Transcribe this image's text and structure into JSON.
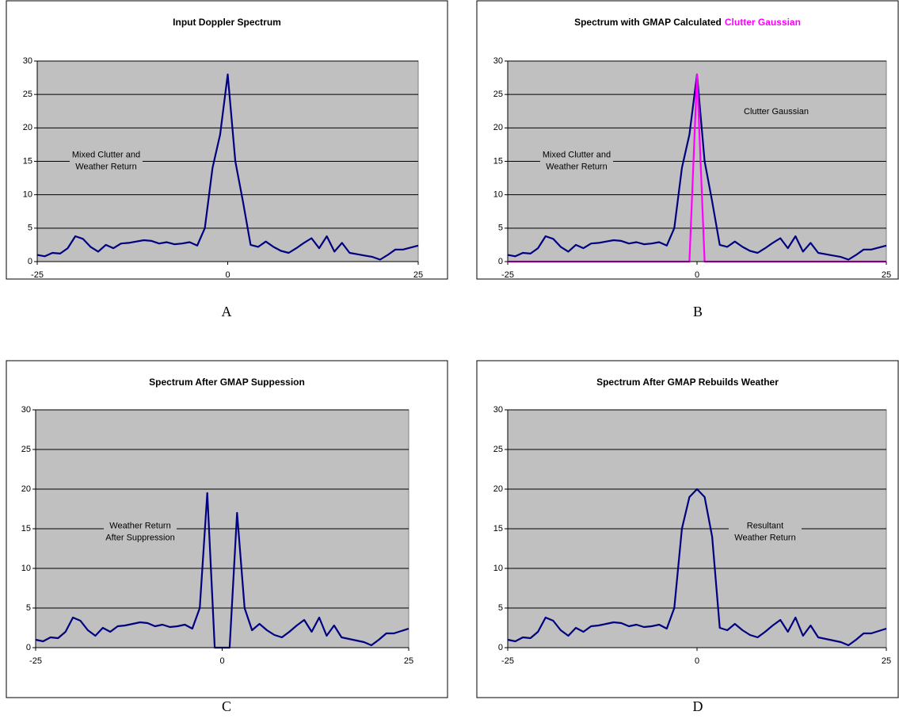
{
  "chart_data": [
    {
      "type": "line",
      "caption": "A",
      "title": [
        "Input Doppler Spectrum"
      ],
      "annotations": [
        [
          "Mixed Clutter and",
          "Weather Return"
        ]
      ],
      "x": [
        -25,
        -24,
        -23,
        -22,
        -21,
        -20,
        -19,
        -18,
        -17,
        -16,
        -15,
        -14,
        -13,
        -12,
        -11,
        -10,
        -9,
        -8,
        -7,
        -6,
        -5,
        -4,
        -3,
        -2,
        -1,
        0,
        1,
        2,
        3,
        4,
        5,
        6,
        7,
        8,
        9,
        10,
        11,
        12,
        13,
        14,
        15,
        16,
        17,
        18,
        19,
        20,
        21,
        22,
        23,
        24,
        25
      ],
      "series": [
        {
          "color": "#000080",
          "values": [
            1,
            0.8,
            1.3,
            1.2,
            2,
            3.8,
            3.4,
            2.2,
            1.5,
            2.5,
            2,
            2.7,
            2.8,
            3,
            3.2,
            3.1,
            2.7,
            2.9,
            2.6,
            2.7,
            2.9,
            2.4,
            5,
            14,
            19,
            28,
            15,
            9,
            2.5,
            2.2,
            3,
            2.2,
            1.6,
            1.3,
            2,
            2.8,
            3.5,
            2,
            3.8,
            1.5,
            2.8,
            1.3,
            1.1,
            0.9,
            0.7,
            0.3,
            1,
            1.8,
            1.8,
            2.1,
            2.4
          ]
        }
      ],
      "xlim": [
        -25,
        25
      ],
      "xticks": [
        -25,
        0,
        25
      ],
      "ylim": [
        0,
        30
      ],
      "yticks": [
        0,
        5,
        10,
        15,
        20,
        25,
        30
      ],
      "grid": true,
      "background": "#c0c0c0"
    },
    {
      "type": "line",
      "caption": "B",
      "title": [
        "Spectrum with GMAP Calculated",
        "Clutter Gaussian"
      ],
      "annotations": [
        [
          "Mixed Clutter and",
          "Weather Return"
        ],
        [
          "Clutter Gaussian"
        ]
      ],
      "x": [
        -25,
        -24,
        -23,
        -22,
        -21,
        -20,
        -19,
        -18,
        -17,
        -16,
        -15,
        -14,
        -13,
        -12,
        -11,
        -10,
        -9,
        -8,
        -7,
        -6,
        -5,
        -4,
        -3,
        -2,
        -1,
        0,
        1,
        2,
        3,
        4,
        5,
        6,
        7,
        8,
        9,
        10,
        11,
        12,
        13,
        14,
        15,
        16,
        17,
        18,
        19,
        20,
        21,
        22,
        23,
        24,
        25
      ],
      "series": [
        {
          "color": "#000080",
          "values": [
            1,
            0.8,
            1.3,
            1.2,
            2,
            3.8,
            3.4,
            2.2,
            1.5,
            2.5,
            2,
            2.7,
            2.8,
            3,
            3.2,
            3.1,
            2.7,
            2.9,
            2.6,
            2.7,
            2.9,
            2.4,
            5,
            14,
            19,
            28,
            15,
            9,
            2.5,
            2.2,
            3,
            2.2,
            1.6,
            1.3,
            2,
            2.8,
            3.5,
            2,
            3.8,
            1.5,
            2.8,
            1.3,
            1.1,
            0.9,
            0.7,
            0.3,
            1,
            1.8,
            1.8,
            2.1,
            2.4
          ]
        },
        {
          "color": "#ff00ff",
          "values": [
            0,
            0,
            0,
            0,
            0,
            0,
            0,
            0,
            0,
            0,
            0,
            0,
            0,
            0,
            0,
            0,
            0,
            0,
            0,
            0,
            0,
            0,
            0,
            0,
            0,
            28,
            0,
            0,
            0,
            0,
            0,
            0,
            0,
            0,
            0,
            0,
            0,
            0,
            0,
            0,
            0,
            0,
            0,
            0,
            0,
            0,
            0,
            0,
            0,
            0,
            0
          ]
        }
      ],
      "xlim": [
        -25,
        25
      ],
      "xticks": [
        -25,
        0,
        25
      ],
      "ylim": [
        0,
        30
      ],
      "yticks": [
        0,
        5,
        10,
        15,
        20,
        25,
        30
      ],
      "grid": true,
      "background": "#c0c0c0"
    },
    {
      "type": "line",
      "caption": "C",
      "title": [
        "Spectrum After GMAP Suppession"
      ],
      "annotations": [
        [
          "Weather Return",
          "After Suppression"
        ]
      ],
      "x": [
        -25,
        -24,
        -23,
        -22,
        -21,
        -20,
        -19,
        -18,
        -17,
        -16,
        -15,
        -14,
        -13,
        -12,
        -11,
        -10,
        -9,
        -8,
        -7,
        -6,
        -5,
        -4,
        -3,
        -2,
        -1,
        0,
        1,
        2,
        3,
        4,
        5,
        6,
        7,
        8,
        9,
        10,
        11,
        12,
        13,
        14,
        15,
        16,
        17,
        18,
        19,
        20,
        21,
        22,
        23,
        24,
        25
      ],
      "series": [
        {
          "color": "#000080",
          "values": [
            1,
            0.8,
            1.3,
            1.2,
            2,
            3.8,
            3.4,
            2.2,
            1.5,
            2.5,
            2,
            2.7,
            2.8,
            3,
            3.2,
            3.1,
            2.7,
            2.9,
            2.6,
            2.7,
            2.9,
            2.4,
            5,
            19.5,
            0,
            0,
            0,
            17,
            5,
            2.2,
            3,
            2.2,
            1.6,
            1.3,
            2,
            2.8,
            3.5,
            2,
            3.8,
            1.5,
            2.8,
            1.3,
            1.1,
            0.9,
            0.7,
            0.3,
            1,
            1.8,
            1.8,
            2.1,
            2.4
          ]
        }
      ],
      "xlim": [
        -25,
        25
      ],
      "xticks": [
        -25,
        0,
        25
      ],
      "ylim": [
        0,
        30
      ],
      "yticks": [
        0,
        5,
        10,
        15,
        20,
        25,
        30
      ],
      "grid": true,
      "background": "#c0c0c0"
    },
    {
      "type": "line",
      "caption": "D",
      "title": [
        "Spectrum After GMAP Rebuilds Weather"
      ],
      "annotations": [
        [
          "Resultant",
          "Weather Return"
        ]
      ],
      "x": [
        -25,
        -24,
        -23,
        -22,
        -21,
        -20,
        -19,
        -18,
        -17,
        -16,
        -15,
        -14,
        -13,
        -12,
        -11,
        -10,
        -9,
        -8,
        -7,
        -6,
        -5,
        -4,
        -3,
        -2,
        -1,
        0,
        1,
        2,
        3,
        4,
        5,
        6,
        7,
        8,
        9,
        10,
        11,
        12,
        13,
        14,
        15,
        16,
        17,
        18,
        19,
        20,
        21,
        22,
        23,
        24,
        25
      ],
      "series": [
        {
          "color": "#000080",
          "values": [
            1,
            0.8,
            1.3,
            1.2,
            2,
            3.8,
            3.4,
            2.2,
            1.5,
            2.5,
            2,
            2.7,
            2.8,
            3,
            3.2,
            3.1,
            2.7,
            2.9,
            2.6,
            2.7,
            2.9,
            2.4,
            5,
            15,
            19,
            20,
            19,
            14,
            2.5,
            2.2,
            3,
            2.2,
            1.6,
            1.3,
            2,
            2.8,
            3.5,
            2,
            3.8,
            1.5,
            2.8,
            1.3,
            1.1,
            0.9,
            0.7,
            0.3,
            1,
            1.8,
            1.8,
            2.1,
            2.4
          ]
        }
      ],
      "xlim": [
        -25,
        25
      ],
      "xticks": [
        -25,
        0,
        25
      ],
      "ylim": [
        0,
        30
      ],
      "yticks": [
        0,
        5,
        10,
        15,
        20,
        25,
        30
      ],
      "grid": true,
      "background": "#c0c0c0"
    }
  ]
}
